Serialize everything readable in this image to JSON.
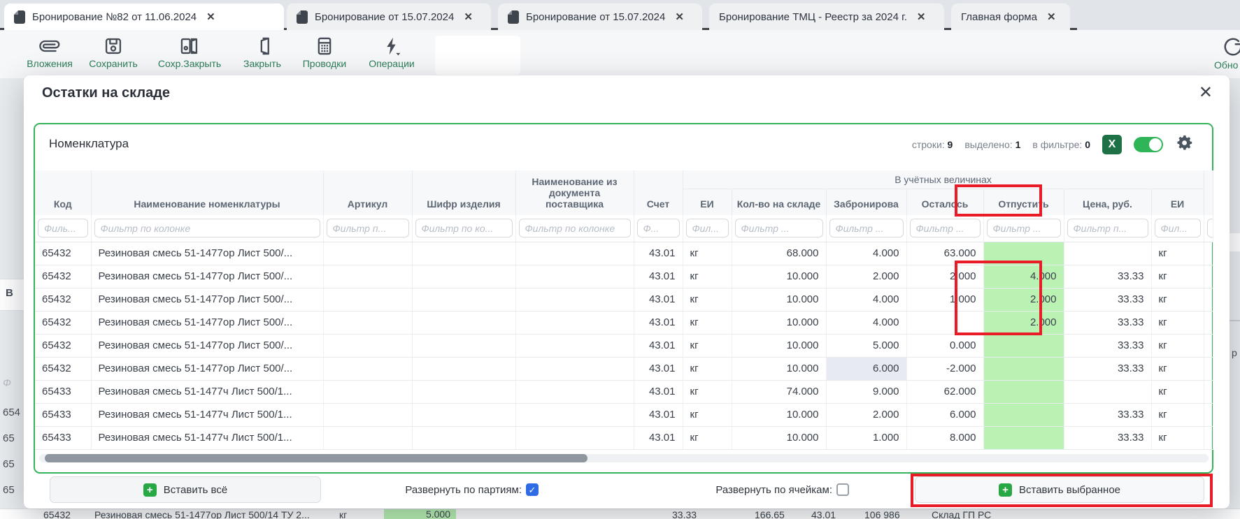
{
  "tabs": [
    {
      "label": "Бронирование №82 от 11.06.2024",
      "active": true
    },
    {
      "label": "Бронирование от 15.07.2024",
      "active": false
    },
    {
      "label": "Бронирование от 15.07.2024",
      "active": false
    },
    {
      "label": "Бронирование ТМЦ - Реестр за 2024 г.",
      "active": false
    },
    {
      "label": "Главная форма",
      "active": false
    }
  ],
  "tab_close_glyph": "✕",
  "toolbar": {
    "attachments": "Вложения",
    "save": "Сохранить",
    "save_close": "Сохр.Закрыть",
    "close": "Закрыть",
    "postings": "Проводки",
    "operations": "Операции",
    "refresh_partial": "Обно"
  },
  "modal": {
    "title": "Остатки на складе",
    "close_glyph": "✕"
  },
  "panel": {
    "title": "Номенклатура",
    "stats": [
      {
        "label": "строки:",
        "value": "9"
      },
      {
        "label": "выделено:",
        "value": "1"
      },
      {
        "label": "в фильтре:",
        "value": "0"
      }
    ],
    "excel_glyph": "X"
  },
  "table": {
    "group_header": "В учётных величинах",
    "columns": [
      {
        "label": "Код",
        "filter": "Филь..."
      },
      {
        "label": "Наименование номенклатуры",
        "filter": "Фильтр по колонке"
      },
      {
        "label": "Артикул",
        "filter": "Фильтр п..."
      },
      {
        "label": "Шифр изделия",
        "filter": "Фильтр по ко..."
      },
      {
        "label": "Наименование из документа поставщика",
        "filter": "Фильтр по колонке"
      },
      {
        "label": "Счет",
        "filter": "Ф..."
      },
      {
        "label": "ЕИ",
        "filter": "Фил..."
      },
      {
        "label": "Кол-во на складе",
        "filter": "Фильтр ..."
      },
      {
        "label": "Забронирова",
        "filter": "Фильтр ..."
      },
      {
        "label": "Осталось",
        "filter": "Фильтр ..."
      },
      {
        "label": "Отпустить",
        "filter": "Фильтр ..."
      },
      {
        "label": "Цена, руб.",
        "filter": "Фильтр п..."
      },
      {
        "label": "ЕИ",
        "filter": "Фил..."
      }
    ],
    "rows": [
      {
        "code": "65432",
        "name": "Резиновая смесь 51-1477ор Лист 500/...",
        "articul": "",
        "cipher": "",
        "supplier_doc": "",
        "account": "43.01",
        "unit": "кг",
        "qty": "68.000",
        "reserved": "4.000",
        "remaining": "63.000",
        "release": "",
        "price": "",
        "unit2": "кг",
        "reserved_selected": false
      },
      {
        "code": "65432",
        "name": "Резиновая смесь 51-1477ор Лист 500/...",
        "articul": "",
        "cipher": "",
        "supplier_doc": "",
        "account": "43.01",
        "unit": "кг",
        "qty": "10.000",
        "reserved": "2.000",
        "remaining": "2.000",
        "release": "4.000",
        "price": "33.33",
        "unit2": "кг",
        "reserved_selected": false
      },
      {
        "code": "65432",
        "name": "Резиновая смесь 51-1477ор Лист 500/...",
        "articul": "",
        "cipher": "",
        "supplier_doc": "",
        "account": "43.01",
        "unit": "кг",
        "qty": "10.000",
        "reserved": "4.000",
        "remaining": "1.000",
        "release": "2.000",
        "price": "33.33",
        "unit2": "кг",
        "reserved_selected": false
      },
      {
        "code": "65432",
        "name": "Резиновая смесь 51-1477ор Лист 500/...",
        "articul": "",
        "cipher": "",
        "supplier_doc": "",
        "account": "43.01",
        "unit": "кг",
        "qty": "10.000",
        "reserved": "4.000",
        "remaining": "",
        "release": "2.000",
        "price": "33.33",
        "unit2": "кг",
        "reserved_selected": false
      },
      {
        "code": "65432",
        "name": "Резиновая смесь 51-1477ор Лист 500/...",
        "articul": "",
        "cipher": "",
        "supplier_doc": "",
        "account": "43.01",
        "unit": "кг",
        "qty": "10.000",
        "reserved": "5.000",
        "remaining": "0.000",
        "release": "",
        "price": "33.33",
        "unit2": "кг",
        "reserved_selected": false
      },
      {
        "code": "65432",
        "name": "Резиновая смесь 51-1477ор Лист 500/...",
        "articul": "",
        "cipher": "",
        "supplier_doc": "",
        "account": "43.01",
        "unit": "кг",
        "qty": "10.000",
        "reserved": "6.000",
        "remaining": "-2.000",
        "release": "",
        "price": "33.33",
        "unit2": "кг",
        "reserved_selected": true
      },
      {
        "code": "65433",
        "name": "Резиновая смесь 51-1477ч Лист 500/1...",
        "articul": "",
        "cipher": "",
        "supplier_doc": "",
        "account": "43.01",
        "unit": "кг",
        "qty": "74.000",
        "reserved": "9.000",
        "remaining": "62.000",
        "release": "",
        "price": "",
        "unit2": "кг",
        "reserved_selected": false
      },
      {
        "code": "65433",
        "name": "Резиновая смесь 51-1477ч Лист 500/1...",
        "articul": "",
        "cipher": "",
        "supplier_doc": "",
        "account": "43.01",
        "unit": "кг",
        "qty": "10.000",
        "reserved": "2.000",
        "remaining": "6.000",
        "release": "",
        "price": "33.33",
        "unit2": "кг",
        "reserved_selected": false
      },
      {
        "code": "65433",
        "name": "Резиновая смесь 51-1477ч Лист 500/1...",
        "articul": "",
        "cipher": "",
        "supplier_doc": "",
        "account": "43.01",
        "unit": "кг",
        "qty": "10.000",
        "reserved": "1.000",
        "remaining": "8.000",
        "release": "",
        "price": "33.33",
        "unit2": "кг",
        "reserved_selected": false
      }
    ]
  },
  "footer": {
    "insert_all": "Вставить всё",
    "expand_batches_label": "Развернуть по партиям:",
    "expand_batches_checked": true,
    "expand_cells_label": "Развернуть по ячейкам:",
    "expand_cells_checked": false,
    "insert_selected": "Вставить выбранное",
    "check_glyph": "✓",
    "plus_glyph": "+"
  },
  "background": {
    "left_fragments": [
      "В",
      "Ф",
      "654",
      "65",
      "65",
      "65"
    ],
    "right_fragment": "р",
    "bottom_row": {
      "code": "65432",
      "name": "Резиновая смесь 51-1477ор Лист 500/14 ТУ 2...",
      "unit": "кг",
      "qty": "5.000",
      "price": "33.33",
      "sum": "166.65",
      "account": "43.01",
      "total": "106 986",
      "warehouse": "Склад ГП РС"
    }
  },
  "colors": {
    "accent_green_border": "#35b45c",
    "release_cell_green": "#b9f2b2",
    "annotation_red": "#e81b26",
    "excel_green": "#1e7145",
    "toolbar_label_teal": "#2c7d56",
    "checkbox_blue": "#2e6be5"
  }
}
